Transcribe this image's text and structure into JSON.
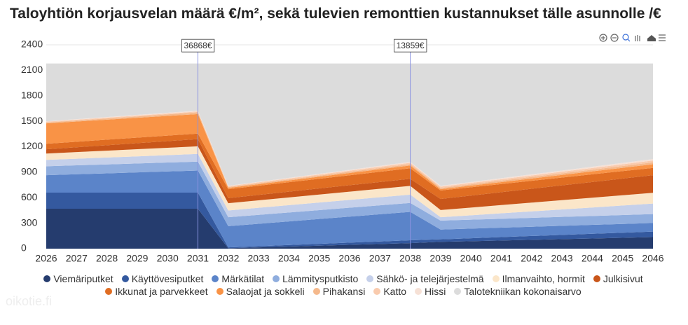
{
  "chart_data": {
    "type": "area",
    "stacked": true,
    "title": "Taloyhtiön korjausvelan määrä €/m², sekä tulevien remonttien kustannukset tälle asunnolle /€",
    "watermark": "oikotie.fi",
    "categories": [
      "2026",
      "2027",
      "2028",
      "2029",
      "2030",
      "2031",
      "2032",
      "2033",
      "2034",
      "2035",
      "2036",
      "2037",
      "2038",
      "2039",
      "2040",
      "2041",
      "2042",
      "2043",
      "2044",
      "2045",
      "2046"
    ],
    "ylim": [
      0,
      2400
    ],
    "yticks": [
      0,
      300,
      600,
      900,
      1200,
      1500,
      1800,
      2100,
      2400
    ],
    "grid": true,
    "annotations": [
      {
        "category": "2031",
        "text": "36868€"
      },
      {
        "category": "2038",
        "text": "13859€"
      }
    ],
    "series": [
      {
        "name": "Viemäriputket",
        "color": "#253c6e",
        "values": [
          470,
          470,
          470,
          470,
          470,
          470,
          5,
          15,
          25,
          35,
          45,
          55,
          65,
          80,
          88,
          96,
          104,
          112,
          120,
          128,
          136
        ]
      },
      {
        "name": "Käyttövesiputket",
        "color": "#34599f",
        "values": [
          190,
          190,
          190,
          190,
          190,
          190,
          10,
          14,
          18,
          22,
          26,
          30,
          34,
          30,
          35,
          40,
          45,
          50,
          55,
          60,
          65
        ]
      },
      {
        "name": "Märkätilat",
        "color": "#5b84c9",
        "values": [
          205,
          216,
          227,
          238,
          249,
          260,
          250,
          264,
          278,
          292,
          306,
          320,
          334,
          115,
          113,
          111,
          109,
          107,
          105,
          103,
          101
        ]
      },
      {
        "name": "Lämmitysputkisto",
        "color": "#8fadde",
        "values": [
          105,
          105,
          105,
          105,
          105,
          105,
          105,
          105,
          105,
          105,
          105,
          105,
          105,
          105,
          105,
          105,
          105,
          105,
          105,
          105,
          105
        ]
      },
      {
        "name": "Sähkö- ja telejärjestelmä",
        "color": "#c5d0ea",
        "values": [
          75,
          78,
          81,
          84,
          87,
          90,
          80,
          83,
          86,
          89,
          92,
          95,
          98,
          40,
          52,
          64,
          76,
          88,
          100,
          112,
          124
        ]
      },
      {
        "name": "Ilmanvaihto, hormit",
        "color": "#fbe6c9",
        "values": [
          75,
          78,
          81,
          84,
          87,
          90,
          85,
          88,
          91,
          94,
          97,
          100,
          103,
          85,
          91,
          97,
          103,
          109,
          115,
          121,
          127
        ]
      },
      {
        "name": "Julkisivut",
        "color": "#c9561a",
        "values": [
          50,
          57,
          64,
          71,
          78,
          85,
          60,
          64,
          68,
          72,
          76,
          80,
          84,
          130,
          141,
          152,
          163,
          174,
          185,
          196,
          207
        ]
      },
      {
        "name": "Ikkunat ja parvekkeet",
        "color": "#e06d22",
        "values": [
          65,
          65,
          65,
          65,
          65,
          65,
          105,
          108,
          111,
          114,
          117,
          120,
          123,
          100,
          98,
          96,
          94,
          92,
          90,
          88,
          86
        ]
      },
      {
        "name": "Salaojat ja sokkeli",
        "color": "#f99346",
        "values": [
          240,
          238,
          236,
          234,
          232,
          230,
          15,
          18,
          21,
          24,
          27,
          30,
          33,
          15,
          19,
          23,
          27,
          31,
          35,
          39,
          43
        ]
      },
      {
        "name": "Pihakansi",
        "color": "#f5b98c",
        "values": [
          10,
          12,
          14,
          16,
          18,
          20,
          10,
          11,
          12,
          13,
          14,
          15,
          16,
          15,
          16,
          17,
          18,
          19,
          20,
          21,
          22
        ]
      },
      {
        "name": "Katto",
        "color": "#f9cbae",
        "values": [
          10,
          10,
          10,
          10,
          10,
          10,
          10,
          11,
          12,
          13,
          14,
          15,
          16,
          15,
          16,
          17,
          18,
          19,
          20,
          21,
          22
        ]
      },
      {
        "name": "Hissi",
        "color": "#f6e1d6",
        "values": [
          5,
          6,
          7,
          8,
          9,
          10,
          5,
          6,
          7,
          8,
          9,
          10,
          11,
          10,
          11,
          12,
          13,
          14,
          15,
          16,
          17
        ]
      },
      {
        "name": "Talotekniikan kokonaisarvo",
        "color": "#dcdcdc",
        "values": [
          680,
          655,
          630,
          605,
          580,
          555,
          1440,
          1393,
          1346,
          1299,
          1252,
          1205,
          1158,
          1440,
          1395,
          1350,
          1305,
          1260,
          1215,
          1170,
          1125
        ]
      }
    ]
  }
}
